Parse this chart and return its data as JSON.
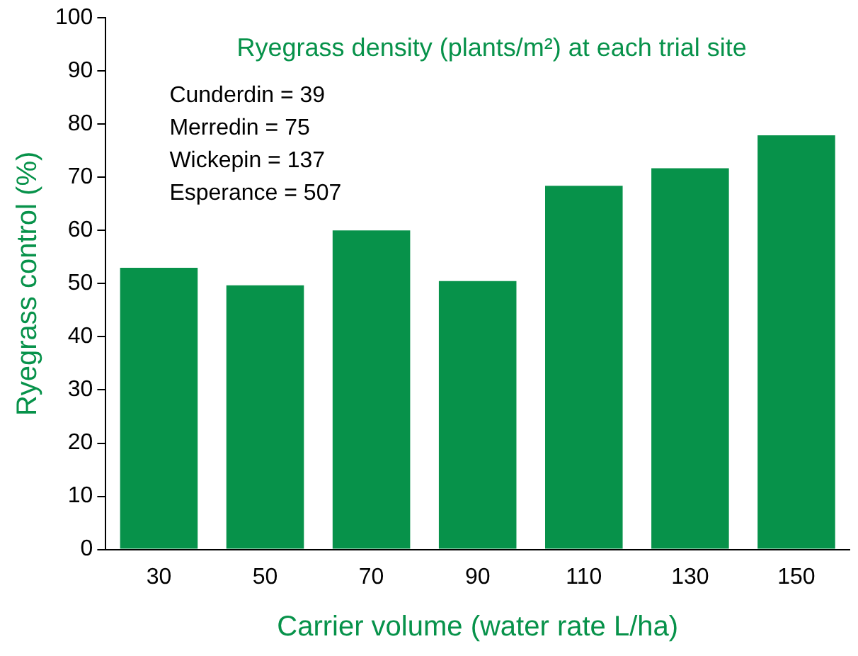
{
  "chart_data": {
    "type": "bar",
    "title": "Ryegrass density (plants/m²) at each trial site",
    "xlabel": "Carrier volume (water rate L/ha)",
    "ylabel": "Ryegrass control (%)",
    "categories": [
      "30",
      "50",
      "70",
      "90",
      "110",
      "130",
      "150"
    ],
    "values": [
      53,
      49.7,
      60,
      50.5,
      68.4,
      71.7,
      77.9
    ],
    "color": "#07924a",
    "ylim": [
      0,
      100
    ],
    "yticks": [
      0,
      10,
      20,
      30,
      40,
      50,
      60,
      70,
      80,
      90,
      100
    ],
    "grid": false,
    "legend": false,
    "annotations": [
      "Cunderdin = 39",
      "Merredin = 75",
      "Wickepin = 137",
      "Esperance = 507"
    ]
  }
}
